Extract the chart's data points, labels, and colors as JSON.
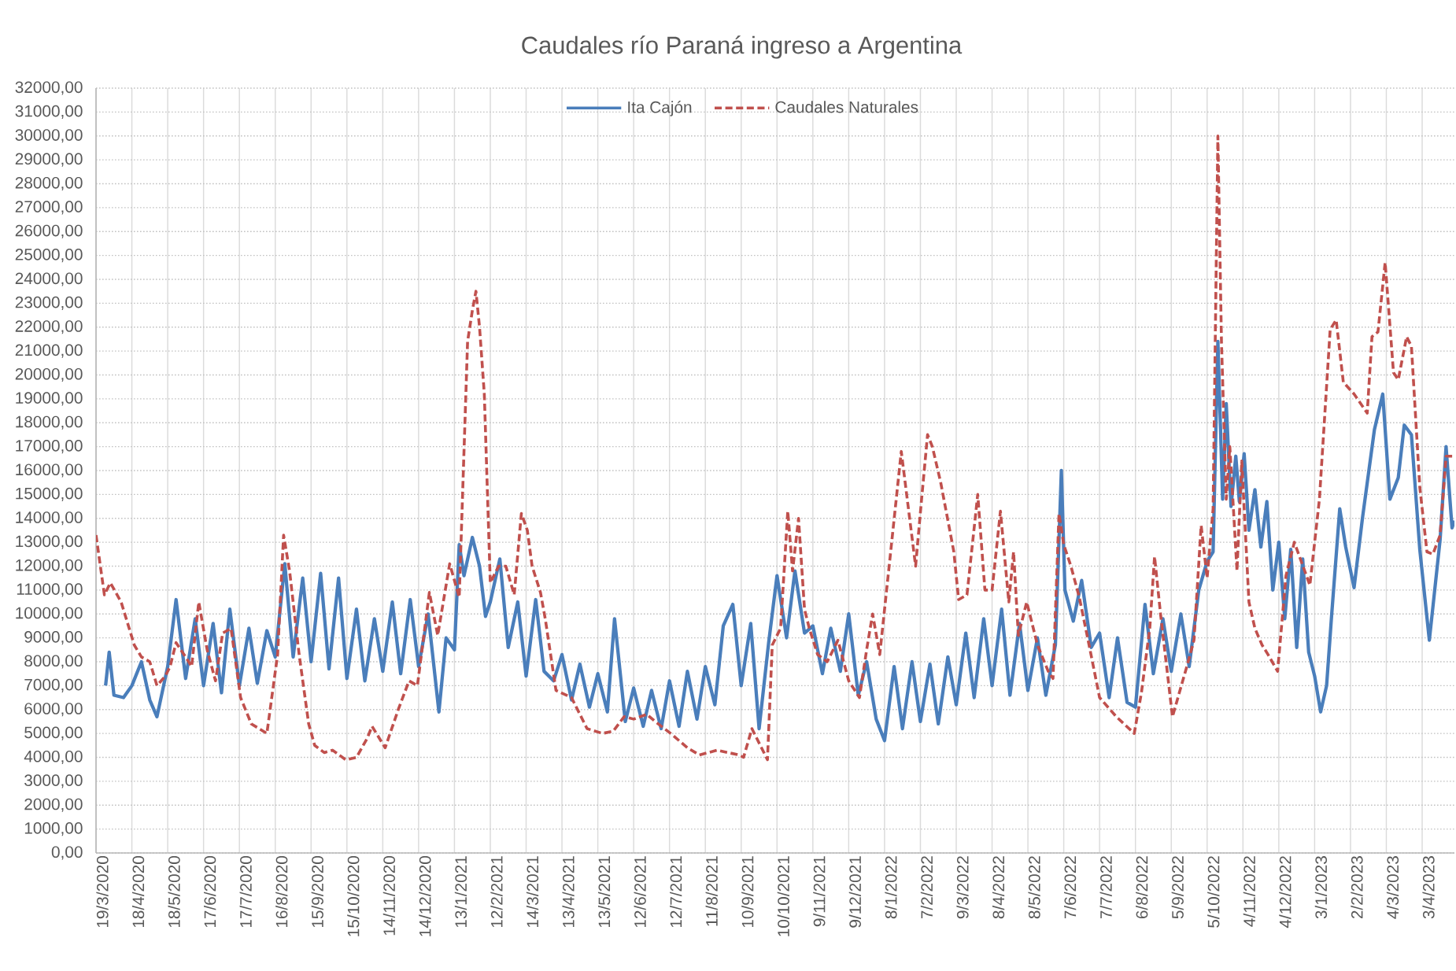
{
  "chart_data": {
    "type": "line",
    "title": "Caudales río Paraná ingreso a Argentina",
    "xlim": [
      "2020-03-19",
      "2023-04-30"
    ],
    "ylim": [
      0,
      32000
    ],
    "xticks": [
      {
        "value": "2020-03-19",
        "label": "19/3/2020"
      },
      {
        "value": "2020-04-18",
        "label": "18/4/2020"
      },
      {
        "value": "2020-05-18",
        "label": "18/5/2020"
      },
      {
        "value": "2020-06-17",
        "label": "17/6/2020"
      },
      {
        "value": "2020-07-17",
        "label": "17/7/2020"
      },
      {
        "value": "2020-08-16",
        "label": "16/8/2020"
      },
      {
        "value": "2020-09-15",
        "label": "15/9/2020"
      },
      {
        "value": "2020-10-15",
        "label": "15/10/2020"
      },
      {
        "value": "2020-11-14",
        "label": "14/11/2020"
      },
      {
        "value": "2020-12-14",
        "label": "14/12/2020"
      },
      {
        "value": "2021-01-13",
        "label": "13/1/2021"
      },
      {
        "value": "2021-02-12",
        "label": "12/2/2021"
      },
      {
        "value": "2021-03-14",
        "label": "14/3/2021"
      },
      {
        "value": "2021-04-13",
        "label": "13/4/2021"
      },
      {
        "value": "2021-05-13",
        "label": "13/5/2021"
      },
      {
        "value": "2021-06-12",
        "label": "12/6/2021"
      },
      {
        "value": "2021-07-12",
        "label": "12/7/2021"
      },
      {
        "value": "2021-08-11",
        "label": "11/8/2021"
      },
      {
        "value": "2021-09-10",
        "label": "10/9/2021"
      },
      {
        "value": "2021-10-10",
        "label": "10/10/2021"
      },
      {
        "value": "2021-11-09",
        "label": "9/11/2021"
      },
      {
        "value": "2021-12-09",
        "label": "9/12/2021"
      },
      {
        "value": "2022-01-08",
        "label": "8/1/2022"
      },
      {
        "value": "2022-02-07",
        "label": "7/2/2022"
      },
      {
        "value": "2022-03-09",
        "label": "9/3/2022"
      },
      {
        "value": "2022-04-08",
        "label": "8/4/2022"
      },
      {
        "value": "2022-05-08",
        "label": "8/5/2022"
      },
      {
        "value": "2022-06-07",
        "label": "7/6/2022"
      },
      {
        "value": "2022-07-07",
        "label": "7/7/2022"
      },
      {
        "value": "2022-08-06",
        "label": "6/8/2022"
      },
      {
        "value": "2022-09-05",
        "label": "5/9/2022"
      },
      {
        "value": "2022-10-05",
        "label": "5/10/2022"
      },
      {
        "value": "2022-11-04",
        "label": "4/11/2022"
      },
      {
        "value": "2022-12-04",
        "label": "4/12/2022"
      },
      {
        "value": "2023-01-03",
        "label": "3/1/2023"
      },
      {
        "value": "2023-02-02",
        "label": "2/2/2023"
      },
      {
        "value": "2023-03-04",
        "label": "4/3/2023"
      },
      {
        "value": "2023-04-03",
        "label": "3/4/2023"
      }
    ],
    "yticks": [
      {
        "value": 0,
        "label": "0,00"
      },
      {
        "value": 1000,
        "label": "1000,00"
      },
      {
        "value": 2000,
        "label": "2000,00"
      },
      {
        "value": 3000,
        "label": "3000,00"
      },
      {
        "value": 4000,
        "label": "4000,00"
      },
      {
        "value": 5000,
        "label": "5000,00"
      },
      {
        "value": 6000,
        "label": "6000,00"
      },
      {
        "value": 7000,
        "label": "7000,00"
      },
      {
        "value": 8000,
        "label": "8000,00"
      },
      {
        "value": 9000,
        "label": "9000,00"
      },
      {
        "value": 10000,
        "label": "10000,00"
      },
      {
        "value": 11000,
        "label": "11000,00"
      },
      {
        "value": 12000,
        "label": "12000,00"
      },
      {
        "value": 13000,
        "label": "13000,00"
      },
      {
        "value": 14000,
        "label": "14000,00"
      },
      {
        "value": 15000,
        "label": "15000,00"
      },
      {
        "value": 16000,
        "label": "16000,00"
      },
      {
        "value": 17000,
        "label": "17000,00"
      },
      {
        "value": 18000,
        "label": "18000,00"
      },
      {
        "value": 19000,
        "label": "19000,00"
      },
      {
        "value": 20000,
        "label": "20000,00"
      },
      {
        "value": 21000,
        "label": "21000,00"
      },
      {
        "value": 22000,
        "label": "22000,00"
      },
      {
        "value": 23000,
        "label": "23000,00"
      },
      {
        "value": 24000,
        "label": "24000,00"
      },
      {
        "value": 25000,
        "label": "25000,00"
      },
      {
        "value": 26000,
        "label": "26000,00"
      },
      {
        "value": 27000,
        "label": "27000,00"
      },
      {
        "value": 28000,
        "label": "28000,00"
      },
      {
        "value": 29000,
        "label": "29000,00"
      },
      {
        "value": 30000,
        "label": "30000,00"
      },
      {
        "value": 31000,
        "label": "31000,00"
      },
      {
        "value": 32000,
        "label": "32000,00"
      }
    ],
    "grid": true,
    "legend": "top",
    "series": [
      {
        "name": "Ita Cajón",
        "color": "#4a7ebb",
        "line_style": "solid",
        "x": [
          "2020-03-27",
          "2020-03-30",
          "2020-04-03",
          "2020-04-11",
          "2020-04-18",
          "2020-04-26",
          "2020-05-03",
          "2020-05-09",
          "2020-05-18",
          "2020-05-25",
          "2020-06-02",
          "2020-06-10",
          "2020-06-17",
          "2020-06-25",
          "2020-07-02",
          "2020-07-09",
          "2020-07-17",
          "2020-07-25",
          "2020-08-01",
          "2020-08-09",
          "2020-08-16",
          "2020-08-24",
          "2020-08-31",
          "2020-09-08",
          "2020-09-15",
          "2020-09-23",
          "2020-09-30",
          "2020-10-08",
          "2020-10-15",
          "2020-10-23",
          "2020-10-30",
          "2020-11-07",
          "2020-11-14",
          "2020-11-22",
          "2020-11-29",
          "2020-12-07",
          "2020-12-14",
          "2020-12-22",
          "2020-12-31",
          "2021-01-06",
          "2021-01-13",
          "2021-01-17",
          "2021-01-21",
          "2021-01-28",
          "2021-02-03",
          "2021-02-08",
          "2021-02-12",
          "2021-02-20",
          "2021-02-27",
          "2021-03-07",
          "2021-03-14",
          "2021-03-22",
          "2021-03-29",
          "2021-04-06",
          "2021-04-13",
          "2021-04-21",
          "2021-04-28",
          "2021-05-06",
          "2021-05-13",
          "2021-05-21",
          "2021-05-27",
          "2021-06-05",
          "2021-06-12",
          "2021-06-20",
          "2021-06-27",
          "2021-07-05",
          "2021-07-12",
          "2021-07-20",
          "2021-07-27",
          "2021-08-04",
          "2021-08-11",
          "2021-08-19",
          "2021-08-26",
          "2021-09-03",
          "2021-09-10",
          "2021-09-18",
          "2021-09-25",
          "2021-10-03",
          "2021-10-10",
          "2021-10-18",
          "2021-10-25",
          "2021-11-02",
          "2021-11-09",
          "2021-11-17",
          "2021-11-24",
          "2021-12-02",
          "2021-12-09",
          "2021-12-17",
          "2021-12-24",
          "2022-01-01",
          "2022-01-08",
          "2022-01-16",
          "2022-01-23",
          "2022-01-31",
          "2022-02-07",
          "2022-02-15",
          "2022-02-22",
          "2022-03-02",
          "2022-03-09",
          "2022-03-17",
          "2022-03-24",
          "2022-04-01",
          "2022-04-08",
          "2022-04-16",
          "2022-04-23",
          "2022-05-01",
          "2022-05-08",
          "2022-05-16",
          "2022-05-23",
          "2022-05-31",
          "2022-06-05",
          "2022-06-08",
          "2022-06-15",
          "2022-06-22",
          "2022-06-30",
          "2022-07-07",
          "2022-07-15",
          "2022-07-22",
          "2022-07-30",
          "2022-08-06",
          "2022-08-14",
          "2022-08-21",
          "2022-08-29",
          "2022-09-05",
          "2022-09-13",
          "2022-09-20",
          "2022-09-28",
          "2022-10-05",
          "2022-10-10",
          "2022-10-14",
          "2022-10-18",
          "2022-10-21",
          "2022-10-25",
          "2022-10-29",
          "2022-11-01",
          "2022-11-05",
          "2022-11-09",
          "2022-11-14",
          "2022-11-19",
          "2022-11-24",
          "2022-11-29",
          "2022-12-04",
          "2022-12-09",
          "2022-12-14",
          "2022-12-19",
          "2022-12-24",
          "2022-12-29",
          "2023-01-03",
          "2023-01-08",
          "2023-01-13",
          "2023-01-17",
          "2023-01-24",
          "2023-01-29",
          "2023-02-05",
          "2023-02-12",
          "2023-02-22",
          "2023-03-01",
          "2023-03-07",
          "2023-03-14",
          "2023-03-19",
          "2023-03-25",
          "2023-04-01",
          "2023-04-09",
          "2023-04-18",
          "2023-04-23",
          "2023-04-28",
          "2023-04-30"
        ],
        "values": [
          7000,
          8400,
          6600,
          6500,
          7000,
          8000,
          6400,
          5700,
          7800,
          10600,
          7300,
          9800,
          7000,
          9600,
          6700,
          10200,
          7000,
          9400,
          7100,
          9300,
          8200,
          12100,
          8200,
          11500,
          8000,
          11700,
          7700,
          11500,
          7300,
          10200,
          7200,
          9800,
          7600,
          10500,
          7500,
          10600,
          7800,
          10000,
          5900,
          9000,
          8500,
          12900,
          11600,
          13200,
          12000,
          9900,
          10500,
          12300,
          8600,
          10500,
          7400,
          10600,
          7600,
          7200,
          8300,
          6400,
          7900,
          6100,
          7500,
          5900,
          9800,
          5500,
          6900,
          5300,
          6800,
          5200,
          7200,
          5300,
          7600,
          5600,
          7800,
          6200,
          9500,
          10400,
          7000,
          9600,
          5200,
          8800,
          11600,
          9000,
          11800,
          9200,
          9500,
          7500,
          9400,
          7600,
          10000,
          6600,
          8000,
          5600,
          4700,
          7800,
          5200,
          8000,
          5500,
          7900,
          5400,
          8200,
          6200,
          9200,
          6500,
          9800,
          7000,
          10200,
          6600,
          9600,
          6800,
          9000,
          6600,
          8700,
          16000,
          11000,
          9700,
          11400,
          8600,
          9200,
          6500,
          9000,
          6300,
          6100,
          10400,
          7500,
          9800,
          7600,
          10000,
          7800,
          11000,
          12200,
          12600,
          21400,
          14800,
          18800,
          14500,
          16600,
          14700,
          16700,
          13500,
          15200,
          12800,
          14700,
          11000,
          13000,
          9800,
          12700,
          8600,
          12300,
          8400,
          7400,
          5900,
          7000,
          9800,
          14400,
          12800,
          11100,
          14000,
          17700,
          19200,
          14800,
          15700,
          17900,
          17500,
          12700,
          8900,
          13100,
          17000,
          13600,
          13900
        ]
      },
      {
        "name": "Caudales Naturales",
        "color": "#c0504d",
        "line_style": "dashed",
        "x": [
          "2020-03-19",
          "2020-03-26",
          "2020-03-31",
          "2020-04-09",
          "2020-04-20",
          "2020-04-26",
          "2020-05-03",
          "2020-05-09",
          "2020-05-16",
          "2020-05-20",
          "2020-05-25",
          "2020-06-02",
          "2020-06-07",
          "2020-06-13",
          "2020-06-20",
          "2020-06-27",
          "2020-07-03",
          "2020-07-10",
          "2020-07-18",
          "2020-07-27",
          "2020-08-09",
          "2020-08-18",
          "2020-08-23",
          "2020-08-28",
          "2020-09-05",
          "2020-09-13",
          "2020-09-18",
          "2020-09-26",
          "2020-10-03",
          "2020-10-14",
          "2020-10-23",
          "2020-11-01",
          "2020-11-05",
          "2020-11-16",
          "2020-11-27",
          "2020-12-06",
          "2020-12-13",
          "2020-12-23",
          "2020-12-30",
          "2021-01-09",
          "2021-01-17",
          "2021-01-24",
          "2021-01-28",
          "2021-01-31",
          "2021-02-03",
          "2021-02-07",
          "2021-02-12",
          "2021-02-19",
          "2021-02-25",
          "2021-03-04",
          "2021-03-10",
          "2021-03-15",
          "2021-03-19",
          "2021-03-26",
          "2021-03-30",
          "2021-04-08",
          "2021-04-21",
          "2021-05-04",
          "2021-05-17",
          "2021-05-26",
          "2021-06-04",
          "2021-06-12",
          "2021-06-23",
          "2021-06-30",
          "2021-07-13",
          "2021-07-27",
          "2021-08-06",
          "2021-08-21",
          "2021-09-08",
          "2021-09-12",
          "2021-09-19",
          "2021-10-02",
          "2021-10-06",
          "2021-10-13",
          "2021-10-19",
          "2021-10-23",
          "2021-10-28",
          "2021-11-02",
          "2021-11-06",
          "2021-11-13",
          "2021-11-21",
          "2021-11-30",
          "2021-12-09",
          "2021-12-18",
          "2021-12-24",
          "2021-12-29",
          "2022-01-04",
          "2022-01-11",
          "2022-01-22",
          "2022-01-29",
          "2022-02-03",
          "2022-02-08",
          "2022-02-13",
          "2022-02-17",
          "2022-02-24",
          "2022-03-07",
          "2022-03-11",
          "2022-03-18",
          "2022-03-27",
          "2022-04-02",
          "2022-04-08",
          "2022-04-15",
          "2022-04-22",
          "2022-04-26",
          "2022-04-30",
          "2022-05-07",
          "2022-05-16",
          "2022-05-25",
          "2022-05-29",
          "2022-06-03",
          "2022-06-07",
          "2022-06-13",
          "2022-06-20",
          "2022-06-29",
          "2022-07-07",
          "2022-07-21",
          "2022-08-05",
          "2022-08-11",
          "2022-08-18",
          "2022-08-22",
          "2022-08-27",
          "2022-09-06",
          "2022-09-18",
          "2022-09-24",
          "2022-09-30",
          "2022-10-05",
          "2022-10-10",
          "2022-10-14",
          "2022-10-17",
          "2022-10-21",
          "2022-10-24",
          "2022-10-30",
          "2022-11-03",
          "2022-11-09",
          "2022-11-14",
          "2022-11-20",
          "2022-11-25",
          "2022-12-03",
          "2022-12-10",
          "2022-12-17",
          "2022-12-30",
          "2023-01-07",
          "2023-01-16",
          "2023-01-21",
          "2023-01-27",
          "2023-02-05",
          "2023-02-16",
          "2023-02-20",
          "2023-02-25",
          "2023-03-03",
          "2023-03-10",
          "2023-03-14",
          "2023-03-21",
          "2023-03-25",
          "2023-04-01",
          "2023-04-07",
          "2023-04-12",
          "2023-04-18",
          "2023-04-23",
          "2023-04-29"
        ],
        "values": [
          13300,
          10800,
          11300,
          10500,
          8700,
          8200,
          8000,
          7000,
          7400,
          7800,
          8800,
          8200,
          7800,
          10500,
          8500,
          7200,
          9200,
          9400,
          6500,
          5400,
          5000,
          8300,
          13300,
          11800,
          8300,
          5400,
          4500,
          4200,
          4300,
          3900,
          4000,
          4800,
          5300,
          4400,
          6000,
          7200,
          7000,
          10900,
          9100,
          12100,
          10700,
          21400,
          22700,
          23500,
          22000,
          19200,
          11300,
          12000,
          12000,
          10800,
          14200,
          13500,
          12000,
          10900,
          9800,
          6800,
          6500,
          5200,
          5000,
          5100,
          5700,
          5600,
          5800,
          5500,
          5000,
          4400,
          4100,
          4300,
          4100,
          4000,
          5200,
          3900,
          8700,
          9400,
          14300,
          11800,
          14000,
          10200,
          9400,
          8300,
          8000,
          8900,
          7200,
          6500,
          8500,
          10000,
          8300,
          11600,
          16800,
          14000,
          12000,
          14800,
          17500,
          17000,
          15500,
          12600,
          10600,
          10800,
          15000,
          11000,
          11000,
          14300,
          10500,
          12600,
          9100,
          10500,
          8700,
          7600,
          7300,
          14200,
          12900,
          12000,
          10700,
          8500,
          6500,
          5700,
          5000,
          6700,
          9400,
          12400,
          10000,
          5700,
          7800,
          8900,
          13700,
          11500,
          14400,
          30000,
          21400,
          14800,
          17000,
          11800,
          16400,
          10500,
          9400,
          8700,
          8300,
          7600,
          11600,
          13000,
          11200,
          14800,
          21900,
          22300,
          19700,
          19200,
          18400,
          21600,
          21800,
          24700,
          20100,
          19800,
          21600,
          21200,
          15300,
          12600,
          12500,
          13300,
          16600,
          16600
        ]
      }
    ]
  }
}
